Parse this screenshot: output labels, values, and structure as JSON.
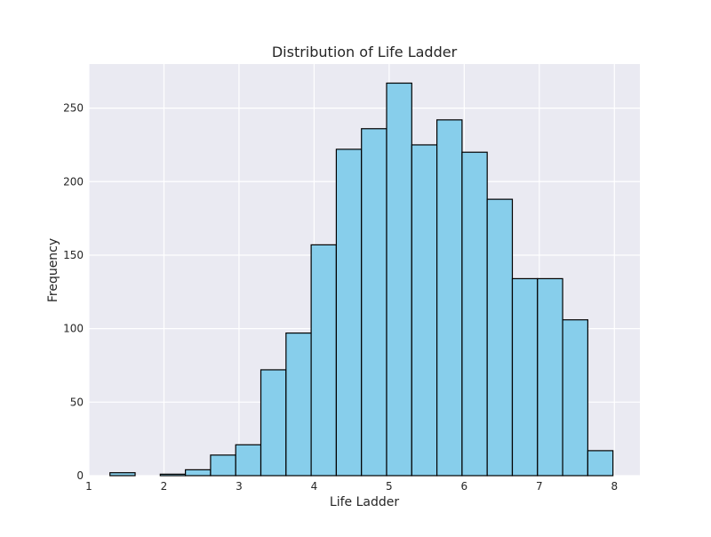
{
  "chart_data": {
    "type": "bar",
    "title": "Distribution of Life Ladder",
    "xlabel": "Life Ladder",
    "ylabel": "Frequency",
    "bin_edges": [
      1.281,
      1.616,
      1.951,
      2.286,
      2.621,
      2.956,
      3.291,
      3.626,
      3.961,
      4.296,
      4.631,
      4.966,
      5.301,
      5.636,
      5.971,
      6.306,
      6.641,
      6.976,
      7.311,
      7.646,
      7.981
    ],
    "values": [
      2,
      0,
      1,
      4,
      14,
      21,
      72,
      97,
      157,
      222,
      236,
      267,
      225,
      242,
      220,
      188,
      134,
      134,
      106,
      17
    ],
    "xlim": [
      1.0,
      8.34
    ],
    "ylim": [
      0,
      280
    ],
    "xticks": [
      1,
      2,
      3,
      4,
      5,
      6,
      7,
      8
    ],
    "yticks": [
      0,
      50,
      100,
      150,
      200,
      250
    ],
    "grid": true,
    "colors": {
      "bar_fill": "#87ceeb",
      "bar_edge": "#000000",
      "plot_background": "#eaeaf2",
      "grid": "#ffffff"
    }
  }
}
